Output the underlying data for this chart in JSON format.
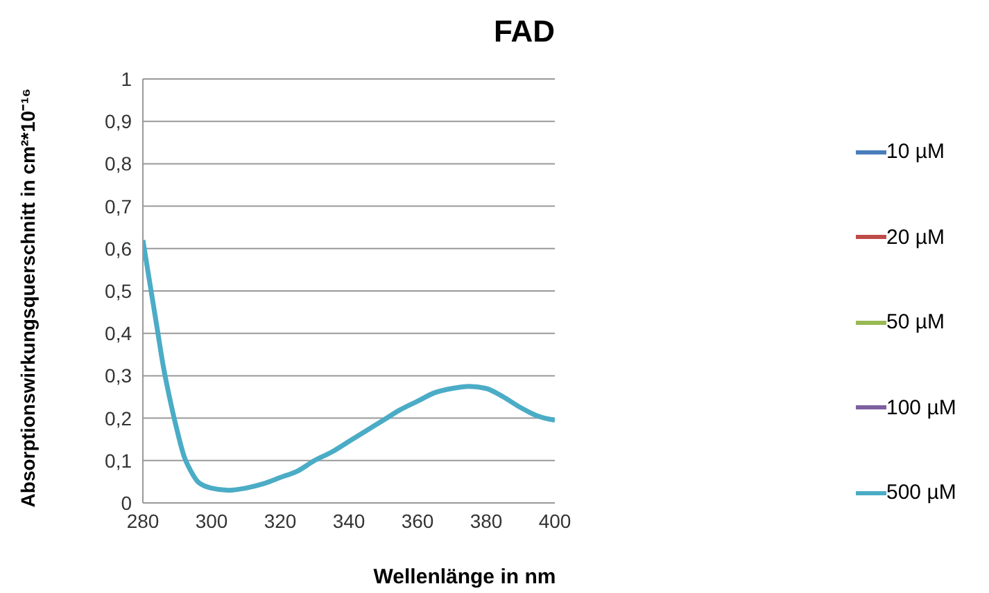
{
  "chart_data": {
    "type": "line",
    "title": "FAD",
    "xlabel": "Wellenlänge in nm",
    "ylabel": "Absorptionswirkungsquerschnitt in cm²*10⁻¹⁶",
    "x": [
      280,
      282,
      284,
      286,
      288,
      290,
      292,
      294,
      296,
      298,
      300,
      305,
      310,
      315,
      320,
      325,
      330,
      335,
      340,
      345,
      350,
      355,
      360,
      365,
      370,
      375,
      380,
      385,
      390,
      395,
      400
    ],
    "series": [
      {
        "name": "10 µM",
        "color": "#4a7ebb",
        "values": [
          null,
          null,
          null,
          null,
          null,
          null,
          null,
          null,
          null,
          null,
          null,
          null,
          null,
          null,
          null,
          null,
          null,
          null,
          null,
          null,
          null,
          null,
          null,
          null,
          null,
          null,
          null,
          null,
          null,
          null,
          null
        ]
      },
      {
        "name": "20 µM",
        "color": "#be4b48",
        "values": [
          null,
          null,
          null,
          null,
          null,
          null,
          null,
          null,
          null,
          null,
          null,
          null,
          null,
          null,
          null,
          null,
          null,
          null,
          null,
          null,
          null,
          null,
          null,
          null,
          null,
          null,
          null,
          null,
          null,
          null,
          null
        ]
      },
      {
        "name": "50 µM",
        "color": "#98b954",
        "values": [
          null,
          null,
          null,
          null,
          null,
          null,
          null,
          null,
          null,
          null,
          null,
          null,
          null,
          null,
          null,
          null,
          null,
          null,
          null,
          null,
          null,
          null,
          null,
          null,
          null,
          null,
          null,
          null,
          null,
          null,
          null
        ]
      },
      {
        "name": "100 µM",
        "color": "#7d60a0",
        "values": [
          null,
          null,
          null,
          null,
          null,
          null,
          null,
          null,
          null,
          null,
          null,
          null,
          null,
          null,
          null,
          null,
          null,
          null,
          null,
          null,
          null,
          null,
          null,
          null,
          null,
          null,
          null,
          null,
          null,
          null,
          null
        ]
      },
      {
        "name": "500 µM",
        "color": "#4bacc6",
        "values": [
          0.62,
          0.52,
          0.42,
          0.32,
          0.24,
          0.17,
          0.11,
          0.075,
          0.05,
          0.04,
          0.035,
          0.03,
          0.035,
          0.045,
          0.06,
          0.075,
          0.1,
          0.12,
          0.145,
          0.17,
          0.195,
          0.22,
          0.24,
          0.26,
          0.27,
          0.275,
          0.27,
          0.25,
          0.225,
          0.205,
          0.195
        ]
      }
    ],
    "xlim": [
      280,
      400
    ],
    "xticks": [
      280,
      300,
      320,
      340,
      360,
      380,
      400
    ],
    "ylim": [
      0,
      1
    ],
    "yticks": [
      {
        "value": 0,
        "label": "0"
      },
      {
        "value": 0.1,
        "label": "0,1"
      },
      {
        "value": 0.2,
        "label": "0,2"
      },
      {
        "value": 0.3,
        "label": "0,3"
      },
      {
        "value": 0.4,
        "label": "0,4"
      },
      {
        "value": 0.5,
        "label": "0,5"
      },
      {
        "value": 0.6,
        "label": "0,6"
      },
      {
        "value": 0.7,
        "label": "0,7"
      },
      {
        "value": 0.8,
        "label": "0,8"
      },
      {
        "value": 0.9,
        "label": "0,9"
      },
      {
        "value": 1,
        "label": "1"
      }
    ],
    "grid": "y",
    "legend": "right",
    "marker": "none",
    "line_style": "solid"
  }
}
